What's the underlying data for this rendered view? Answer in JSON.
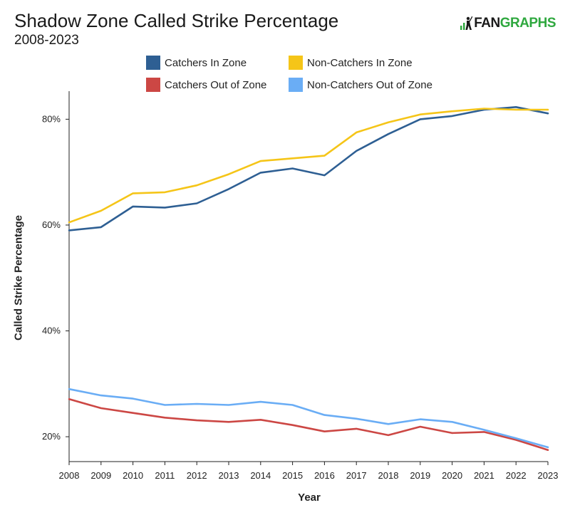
{
  "header": {
    "title": "Shadow Zone Called Strike Percentage",
    "subtitle": "2008-2023",
    "logo_text_1": "FAN",
    "logo_text_2": "GRAPHS"
  },
  "chart_data": {
    "type": "line",
    "title": "Shadow Zone Called Strike Percentage",
    "subtitle": "2008-2023",
    "xlabel": "Year",
    "ylabel": "Called Strike Percentage",
    "x": [
      2008,
      2009,
      2010,
      2011,
      2012,
      2013,
      2014,
      2015,
      2016,
      2017,
      2018,
      2019,
      2020,
      2021,
      2022,
      2023
    ],
    "ylim": [
      15.3,
      85.3
    ],
    "yticks": [
      20,
      40,
      60,
      80
    ],
    "ytick_labels": [
      "20%",
      "40%",
      "60%",
      "80%"
    ],
    "grid": false,
    "legend_position": "top",
    "series": [
      {
        "name": "Catchers In Zone",
        "color": "#2e5f93",
        "values": [
          59.0,
          59.6,
          63.5,
          63.3,
          64.1,
          66.8,
          69.9,
          70.7,
          69.4,
          74.0,
          77.2,
          80.0,
          80.6,
          81.8,
          82.3,
          81.1
        ]
      },
      {
        "name": "Non-Catchers In Zone",
        "color": "#f5c518",
        "values": [
          60.5,
          62.7,
          66.0,
          66.2,
          67.5,
          69.6,
          72.1,
          72.6,
          73.1,
          77.5,
          79.4,
          80.9,
          81.5,
          82.0,
          81.8,
          81.8
        ]
      },
      {
        "name": "Catchers Out of Zone",
        "color": "#cc4744",
        "values": [
          27.1,
          25.4,
          24.5,
          23.6,
          23.1,
          22.8,
          23.2,
          22.2,
          21.0,
          21.5,
          20.3,
          21.9,
          20.7,
          20.9,
          19.4,
          17.5
        ]
      },
      {
        "name": "Non-Catchers Out of Zone",
        "color": "#6aadf5",
        "values": [
          29.0,
          27.8,
          27.2,
          26.0,
          26.2,
          26.0,
          26.6,
          26.0,
          24.1,
          23.4,
          22.4,
          23.3,
          22.8,
          21.3,
          19.7,
          18.0
        ]
      }
    ]
  }
}
